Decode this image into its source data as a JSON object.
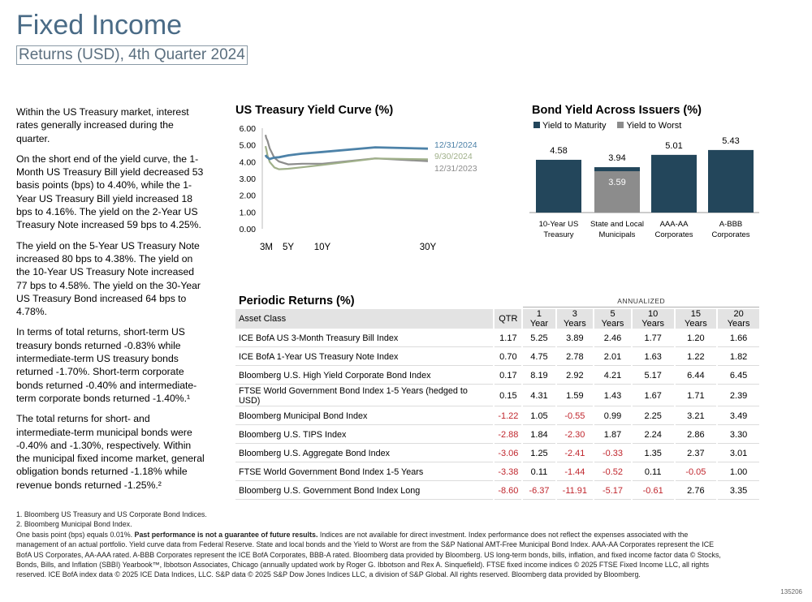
{
  "header": {
    "title": "Fixed Income",
    "subtitle": "Returns (USD), 4th Quarter 2024"
  },
  "commentary": [
    "Within the US Treasury market, interest rates generally increased during the quarter.",
    "On the short end of the yield curve, the 1-Month US Treasury Bill yield decreased 53 basis points (bps) to 4.40%, while the 1-Year US Treasury Bill yield increased 18 bps to 4.16%. The yield on the 2-Year US Treasury Note increased 59 bps to 4.25%.",
    "The yield on the 5-Year US Treasury Note increased 80 bps to 4.38%. The yield on the 10-Year US Treasury Note increased 77 bps to 4.58%. The yield on the 30-Year US Treasury Bond increased 64 bps to 4.78%.",
    "In terms of total returns, short-term US treasury bonds returned -0.83% while intermediate-term US treasury bonds returned -1.70%. Short-term corporate bonds returned -0.40% and intermediate-term corporate bonds returned -1.40%.¹",
    "The total returns for short- and intermediate-term municipal bonds were -0.40% and -1.30%, respectively. Within the municipal fixed income market, general obligation bonds returned -1.18% while revenue bonds returned -1.25%.²"
  ],
  "chart_data": [
    {
      "type": "line",
      "title": "US Treasury Yield Curve (%)",
      "x_ticks": [
        "3M",
        "5Y",
        "10Y",
        "30Y"
      ],
      "ylim": [
        0,
        6
      ],
      "y_ticks": [
        "6.00",
        "5.00",
        "4.00",
        "3.00",
        "2.00",
        "1.00",
        "0.00"
      ],
      "x_years": [
        0.083,
        0.25,
        0.5,
        1,
        2,
        3,
        5,
        7,
        10,
        20,
        30
      ],
      "series": [
        {
          "name": "12/31/2024",
          "color": "#4d82a8",
          "values": [
            4.4,
            4.31,
            4.25,
            4.16,
            4.25,
            4.27,
            4.38,
            4.48,
            4.58,
            4.86,
            4.78
          ]
        },
        {
          "name": "9/30/2024",
          "color": "#a0b08a",
          "values": [
            4.93,
            4.73,
            4.38,
            3.98,
            3.66,
            3.55,
            3.58,
            3.67,
            3.81,
            4.19,
            4.14
          ]
        },
        {
          "name": "12/31/2023",
          "color": "#8c8c8c",
          "values": [
            5.6,
            5.4,
            5.26,
            4.79,
            4.23,
            4.01,
            3.84,
            3.88,
            3.88,
            4.2,
            4.03
          ]
        }
      ]
    },
    {
      "type": "bar",
      "title": "Bond Yield Across Issuers (%)",
      "legend": [
        "Yield to Maturity",
        "Yield to Worst"
      ],
      "categories": [
        "10-Year US Treasury",
        "State and Local Municipals",
        "AAA-AA Corporates",
        "A-BBB Corporates"
      ],
      "series": [
        {
          "name": "Yield to Maturity",
          "color": "#23465b",
          "values": [
            4.58,
            3.94,
            5.01,
            5.43
          ]
        },
        {
          "name": "Yield to Worst",
          "color": "#8c8c8c",
          "values": [
            null,
            3.59,
            null,
            null
          ]
        }
      ],
      "ylim": [
        0,
        6
      ]
    }
  ],
  "labels": {
    "ytm_labels": [
      "4.58",
      "3.94",
      "5.01",
      "5.43"
    ],
    "ytw_label": "3.59",
    "category_lines": [
      [
        "10-Year US",
        "Treasury"
      ],
      [
        "State and Local",
        "Municipals"
      ],
      [
        "AAA-AA",
        "Corporates"
      ],
      [
        "A-BBB",
        "Corporates"
      ]
    ]
  },
  "returns": {
    "title": "Periodic Returns (%)",
    "annualized_label": "ANNUALIZED",
    "headers": [
      "Asset Class",
      "QTR",
      "1 Year",
      "3 Years",
      "5 Years",
      "10 Years",
      "15 Years",
      "20 Years"
    ],
    "rows": [
      {
        "name": "ICE BofA US 3-Month Treasury Bill Index",
        "values": [
          "1.17",
          "5.25",
          "3.89",
          "2.46",
          "1.77",
          "1.20",
          "1.66"
        ]
      },
      {
        "name": "ICE BofA 1-Year US Treasury Note Index",
        "values": [
          "0.70",
          "4.75",
          "2.78",
          "2.01",
          "1.63",
          "1.22",
          "1.82"
        ]
      },
      {
        "name": "Bloomberg U.S. High Yield Corporate Bond Index",
        "values": [
          "0.17",
          "8.19",
          "2.92",
          "4.21",
          "5.17",
          "6.44",
          "6.45"
        ]
      },
      {
        "name": "FTSE World Government Bond Index 1-5 Years (hedged to USD)",
        "values": [
          "0.15",
          "4.31",
          "1.59",
          "1.43",
          "1.67",
          "1.71",
          "2.39"
        ]
      },
      {
        "name": "Bloomberg Municipal Bond Index",
        "values": [
          "-1.22",
          "1.05",
          "-0.55",
          "0.99",
          "2.25",
          "3.21",
          "3.49"
        ]
      },
      {
        "name": "Bloomberg U.S. TIPS Index",
        "values": [
          "-2.88",
          "1.84",
          "-2.30",
          "1.87",
          "2.24",
          "2.86",
          "3.30"
        ]
      },
      {
        "name": "Bloomberg U.S. Aggregate Bond Index",
        "values": [
          "-3.06",
          "1.25",
          "-2.41",
          "-0.33",
          "1.35",
          "2.37",
          "3.01"
        ]
      },
      {
        "name": "FTSE World Government Bond Index 1-5 Years",
        "values": [
          "-3.38",
          "0.11",
          "-1.44",
          "-0.52",
          "0.11",
          "-0.05",
          "1.00"
        ]
      },
      {
        "name": "Bloomberg U.S. Government Bond Index Long",
        "values": [
          "-8.60",
          "-6.37",
          "-11.91",
          "-5.17",
          "-0.61",
          "2.76",
          "3.35"
        ]
      }
    ]
  },
  "footnotes": {
    "note1": "1. Bloomberg US Treasury and US Corporate Bond Indices.",
    "note2": "2. Bloomberg Municipal Bond Index.",
    "disclosure_start": "One basis point (bps) equals 0.01%. ",
    "disclosure_bold": "Past performance is not a guarantee of future results.",
    "disclosure_rest": " Indices are not available for direct investment. Index performance does not reflect the expenses associated with the management of an actual portfolio. Yield curve data from Federal Reserve. State and local bonds and the Yield to Worst are from the S&P National AMT-Free Municipal Bond Index. AAA-AA Corporates represent the ICE BofA US Corporates, AA-AAA rated. A-BBB Corporates represent the ICE BofA Corporates, BBB-A rated. Bloomberg data provided by Bloomberg. US long-term bonds, bills, inflation, and fixed income factor data © Stocks, Bonds, Bills, and Inflation (SBBI) Yearbook™, Ibbotson Associates, Chicago (annually updated work by Roger G. Ibbotson and Rex A. Sinquefield). FTSE fixed income indices © 2025 FTSE Fixed Income LLC, all rights reserved. ICE BofA index data © 2025 ICE Data Indices, LLC. S&P data © 2025 S&P Dow Jones Indices LLC, a division of S&P Global. All rights reserved. Bloomberg data provided by Bloomberg."
  },
  "page_id": "135206"
}
